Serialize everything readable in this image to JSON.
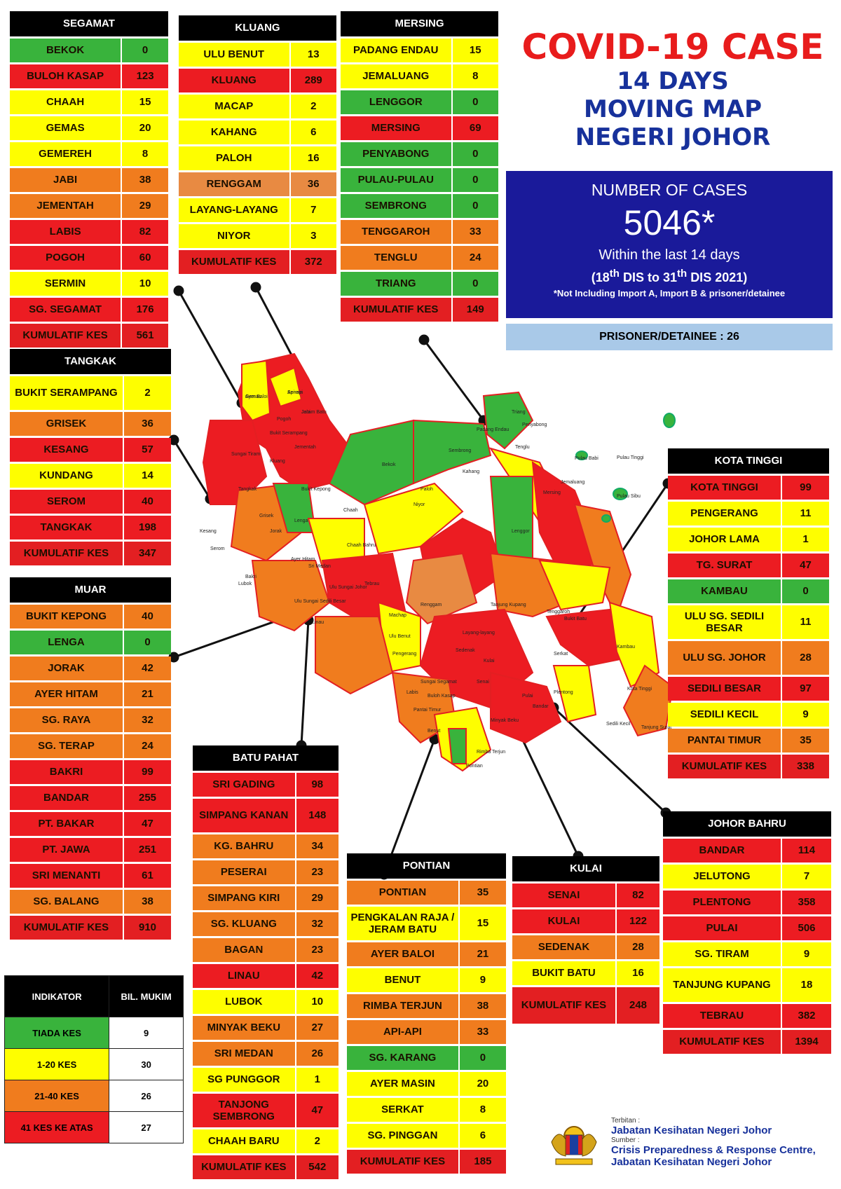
{
  "header": {
    "title": "COVID-19 CASE",
    "subtitle_lines": [
      "14 DAYS",
      "MOVING MAP",
      "NEGERI JOHOR"
    ]
  },
  "summary": {
    "label": "NUMBER OF CASES",
    "total": "5046*",
    "period_text": "Within the last 14 days",
    "date_range": {
      "start_day": "18",
      "start_sup": "th",
      "start_month": "DIS to 31",
      "end_sup": "th",
      "end_rest": "DIS 2021)"
    },
    "note": "*Not Including Import A, Import B & prisoner/detainee",
    "prisoner": "PRISONER/DETAINEE : 26"
  },
  "colors": {
    "green": "#39b33c",
    "yellow": "#fefe00",
    "orange": "#f07c1e",
    "red": "#ec1c22",
    "navy": "#1a1a9a"
  },
  "districts": [
    {
      "id": "segamat",
      "name": "SEGAMAT",
      "rows": [
        {
          "place": "BEKOK",
          "cases": "0",
          "level": "g"
        },
        {
          "place": "BULOH KASAP",
          "cases": "123",
          "level": "r"
        },
        {
          "place": "CHAAH",
          "cases": "15",
          "level": "y"
        },
        {
          "place": "GEMAS",
          "cases": "20",
          "level": "y"
        },
        {
          "place": "GEMEREH",
          "cases": "8",
          "level": "y"
        },
        {
          "place": "JABI",
          "cases": "38",
          "level": "o"
        },
        {
          "place": "JEMENTAH",
          "cases": "29",
          "level": "o"
        },
        {
          "place": "LABIS",
          "cases": "82",
          "level": "r"
        },
        {
          "place": "POGOH",
          "cases": "60",
          "level": "r"
        },
        {
          "place": "SERMIN",
          "cases": "10",
          "level": "y"
        },
        {
          "place": "SG. SEGAMAT",
          "cases": "176",
          "level": "r"
        }
      ],
      "total_label": "KUMULATIF KES",
      "total": "561"
    },
    {
      "id": "kluang",
      "name": "KLUANG",
      "rows": [
        {
          "place": "ULU BENUT",
          "cases": "13",
          "level": "y"
        },
        {
          "place": "KLUANG",
          "cases": "289",
          "level": "r"
        },
        {
          "place": "MACAP",
          "cases": "2",
          "level": "y"
        },
        {
          "place": "KAHANG",
          "cases": "6",
          "level": "y"
        },
        {
          "place": "PALOH",
          "cases": "16",
          "level": "y"
        },
        {
          "place": "RENGGAM",
          "cases": "36",
          "level": "o2"
        },
        {
          "place": "LAYANG-LAYANG",
          "cases": "7",
          "level": "y"
        },
        {
          "place": "NIYOR",
          "cases": "3",
          "level": "y"
        }
      ],
      "total_label": "KUMULATIF KES",
      "total": "372"
    },
    {
      "id": "mersing",
      "name": "MERSING",
      "rows": [
        {
          "place": "PADANG ENDAU",
          "cases": "15",
          "level": "y"
        },
        {
          "place": "JEMALUANG",
          "cases": "8",
          "level": "y"
        },
        {
          "place": "LENGGOR",
          "cases": "0",
          "level": "g"
        },
        {
          "place": "MERSING",
          "cases": "69",
          "level": "r"
        },
        {
          "place": "PENYABONG",
          "cases": "0",
          "level": "g"
        },
        {
          "place": "PULAU-PULAU",
          "cases": "0",
          "level": "g"
        },
        {
          "place": "SEMBRONG",
          "cases": "0",
          "level": "g"
        },
        {
          "place": "TENGGAROH",
          "cases": "33",
          "level": "o"
        },
        {
          "place": "TENGLU",
          "cases": "24",
          "level": "o"
        },
        {
          "place": "TRIANG",
          "cases": "0",
          "level": "g"
        }
      ],
      "total_label": "KUMULATIF KES",
      "total": "149"
    },
    {
      "id": "tangkak",
      "name": "TANGKAK",
      "rows": [
        {
          "place": "BUKIT SERAMPANG",
          "cases": "2",
          "level": "y"
        },
        {
          "place": "GRISEK",
          "cases": "36",
          "level": "o"
        },
        {
          "place": "KESANG",
          "cases": "57",
          "level": "r"
        },
        {
          "place": "KUNDANG",
          "cases": "14",
          "level": "y"
        },
        {
          "place": "SEROM",
          "cases": "40",
          "level": "r"
        },
        {
          "place": "TANGKAK",
          "cases": "198",
          "level": "r"
        }
      ],
      "total_label": "KUMULATIF KES",
      "total": "347"
    },
    {
      "id": "muar",
      "name": "MUAR",
      "rows": [
        {
          "place": "BUKIT KEPONG",
          "cases": "40",
          "level": "o"
        },
        {
          "place": "LENGA",
          "cases": "0",
          "level": "g"
        },
        {
          "place": "JORAK",
          "cases": "42",
          "level": "o"
        },
        {
          "place": "AYER HITAM",
          "cases": "21",
          "level": "o"
        },
        {
          "place": "SG. RAYA",
          "cases": "32",
          "level": "o"
        },
        {
          "place": "SG. TERAP",
          "cases": "24",
          "level": "o"
        },
        {
          "place": "BAKRI",
          "cases": "99",
          "level": "r"
        },
        {
          "place": "BANDAR",
          "cases": "255",
          "level": "r"
        },
        {
          "place": "PT. BAKAR",
          "cases": "47",
          "level": "r"
        },
        {
          "place": "PT. JAWA",
          "cases": "251",
          "level": "r"
        },
        {
          "place": "SRI MENANTI",
          "cases": "61",
          "level": "r"
        },
        {
          "place": "SG. BALANG",
          "cases": "38",
          "level": "o"
        }
      ],
      "total_label": "KUMULATIF KES",
      "total": "910"
    },
    {
      "id": "batupahat",
      "name": "BATU PAHAT",
      "rows": [
        {
          "place": "SRI GADING",
          "cases": "98",
          "level": "r"
        },
        {
          "place": "SIMPANG KANAN",
          "cases": "148",
          "level": "r"
        },
        {
          "place": "KG. BAHRU",
          "cases": "34",
          "level": "o"
        },
        {
          "place": "PESERAI",
          "cases": "23",
          "level": "o"
        },
        {
          "place": "SIMPANG KIRI",
          "cases": "29",
          "level": "o"
        },
        {
          "place": "SG. KLUANG",
          "cases": "32",
          "level": "o"
        },
        {
          "place": "BAGAN",
          "cases": "23",
          "level": "o"
        },
        {
          "place": "LINAU",
          "cases": "42",
          "level": "r"
        },
        {
          "place": "LUBOK",
          "cases": "10",
          "level": "y"
        },
        {
          "place": "MINYAK BEKU",
          "cases": "27",
          "level": "o"
        },
        {
          "place": "SRI MEDAN",
          "cases": "26",
          "level": "o"
        },
        {
          "place": "SG PUNGGOR",
          "cases": "1",
          "level": "y"
        },
        {
          "place": "TANJONG SEMBRONG",
          "cases": "47",
          "level": "r"
        },
        {
          "place": "CHAAH BARU",
          "cases": "2",
          "level": "y"
        }
      ],
      "total_label": "KUMULATIF KES",
      "total": "542"
    },
    {
      "id": "pontian",
      "name": "PONTIAN",
      "rows": [
        {
          "place": "PONTIAN",
          "cases": "35",
          "level": "o"
        },
        {
          "place": "PENGKALAN RAJA / JERAM BATU",
          "cases": "15",
          "level": "y"
        },
        {
          "place": "AYER BALOI",
          "cases": "21",
          "level": "o"
        },
        {
          "place": "BENUT",
          "cases": "9",
          "level": "y"
        },
        {
          "place": "RIMBA TERJUN",
          "cases": "38",
          "level": "o"
        },
        {
          "place": "API-API",
          "cases": "33",
          "level": "o"
        },
        {
          "place": "SG. KARANG",
          "cases": "0",
          "level": "g"
        },
        {
          "place": "AYER MASIN",
          "cases": "20",
          "level": "y"
        },
        {
          "place": "SERKAT",
          "cases": "8",
          "level": "y"
        },
        {
          "place": "SG. PINGGAN",
          "cases": "6",
          "level": "y"
        }
      ],
      "total_label": "KUMULATIF KES",
      "total": "185"
    },
    {
      "id": "kulai",
      "name": "KULAI",
      "rows": [
        {
          "place": "SENAI",
          "cases": "82",
          "level": "r"
        },
        {
          "place": "KULAI",
          "cases": "122",
          "level": "r"
        },
        {
          "place": "SEDENAK",
          "cases": "28",
          "level": "o"
        },
        {
          "place": "BUKIT BATU",
          "cases": "16",
          "level": "y"
        }
      ],
      "total_label": "KUMULATIF KES",
      "total": "248"
    },
    {
      "id": "kotatinggi",
      "name": "KOTA TINGGI",
      "rows": [
        {
          "place": "KOTA TINGGI",
          "cases": "99",
          "level": "r"
        },
        {
          "place": "PENGERANG",
          "cases": "11",
          "level": "y"
        },
        {
          "place": "JOHOR LAMA",
          "cases": "1",
          "level": "y"
        },
        {
          "place": "TG. SURAT",
          "cases": "47",
          "level": "r"
        },
        {
          "place": "KAMBAU",
          "cases": "0",
          "level": "g"
        },
        {
          "place": "ULU SG. SEDILI BESAR",
          "cases": "11",
          "level": "y"
        },
        {
          "place": "ULU  SG. JOHOR",
          "cases": "28",
          "level": "o"
        },
        {
          "place": "SEDILI BESAR",
          "cases": "97",
          "level": "r"
        },
        {
          "place": "SEDILI KECIL",
          "cases": "9",
          "level": "y"
        },
        {
          "place": "PANTAI TIMUR",
          "cases": "35",
          "level": "o"
        }
      ],
      "total_label": "KUMULATIF KES",
      "total": "338"
    },
    {
      "id": "johorbahru",
      "name": "JOHOR BAHRU",
      "rows": [
        {
          "place": "BANDAR",
          "cases": "114",
          "level": "r"
        },
        {
          "place": "JELUTONG",
          "cases": "7",
          "level": "y"
        },
        {
          "place": "PLENTONG",
          "cases": "358",
          "level": "r"
        },
        {
          "place": "PULAI",
          "cases": "506",
          "level": "r"
        },
        {
          "place": "SG. TIRAM",
          "cases": "9",
          "level": "y"
        },
        {
          "place": "TANJUNG KUPANG",
          "cases": "18",
          "level": "y"
        },
        {
          "place": "TEBRAU",
          "cases": "382",
          "level": "r"
        }
      ],
      "total_label": "KUMULATIF KES",
      "total": "1394"
    }
  ],
  "legend": {
    "header": [
      "INDIKATOR",
      "BIL. MUKIM"
    ],
    "rows": [
      {
        "label": "TIADA KES",
        "count": "9",
        "level": "g"
      },
      {
        "label": "1-20 KES",
        "count": "30",
        "level": "y"
      },
      {
        "label": "21-40 KES",
        "count": "26",
        "level": "o"
      },
      {
        "label": "41 KES KE ATAS",
        "count": "27",
        "level": "r"
      }
    ]
  },
  "footer": {
    "terbitan_label": "Terbitan :",
    "terbitan": "Jabatan Kesihatan Negeri Johor",
    "sumber_label": "Sumber :",
    "sumber_1": "Crisis Preparedness & Response Centre,",
    "sumber_2": "Jabatan Kesihatan Negeri Johor"
  },
  "map_labels": [
    "Gemas",
    "Sermin",
    "Jabi",
    "Bekok",
    "Sembrong",
    "Padang Endau",
    "Triang",
    "Penyabong",
    "Tenglu",
    "Pulau Babi",
    "Pulau Tinggi",
    "Pulau Sibu",
    "Jemaluang",
    "Mersing",
    "Lenggor",
    "Kahang",
    "Paloh",
    "Niyor",
    "Chaah",
    "Lenga",
    "Bukit Kepong",
    "Grisek",
    "Jorak",
    "Tangkak",
    "Kesang",
    "Serom",
    "Bakri",
    "Ayer Hitam",
    "Sri Medan",
    "Chaah Bahru",
    "Renggam",
    "Machap",
    "Layang-layang",
    "Ulu Benut",
    "Sedenak",
    "Kulai",
    "Senai",
    "Bukit Batu",
    "Kambau",
    "Kota Tinggi",
    "Sedili Kecil",
    "Tanjung Surat",
    "Pengerang",
    "Pantai Timur",
    "Benut",
    "Pontian",
    "Rimba Terjun",
    "Serkat",
    "Tanjung Kupang",
    "Tenggaroh",
    "Ulu Sungai Johor",
    "Ulu Sungai Sedili Besar",
    "Linau",
    "Lubok",
    "Minyak Beku",
    "Bandar",
    "Pulai",
    "Plentong",
    "Tebrau",
    "Sungai Tiram",
    "Kluang",
    "Jementah",
    "Bukit Serampang",
    "Pogoh",
    "Sungai Segamat",
    "Labis",
    "Buloh Kasap",
    "Ayer Baloi",
    "Api-api",
    "Jeram Batu"
  ]
}
